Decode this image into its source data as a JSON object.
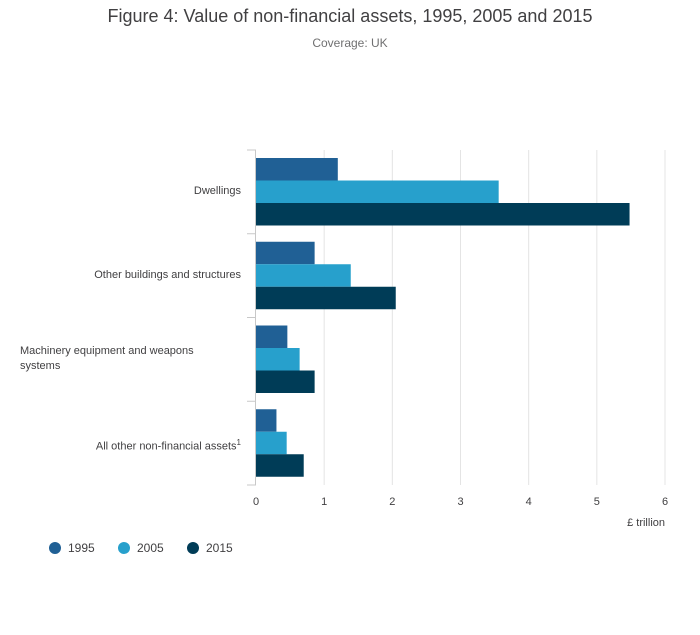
{
  "chart_data": {
    "type": "bar",
    "orientation": "horizontal",
    "title": "Figure 4: Value of non-financial assets, 1995, 2005 and 2015",
    "subtitle": "Coverage: UK",
    "xlabel": "£ trillion",
    "xlim": [
      0,
      6
    ],
    "xticks": [
      "0",
      "1",
      "2",
      "3",
      "4",
      "5",
      "6"
    ],
    "grid": true,
    "legend_position": "bottom-left",
    "categories": [
      {
        "label": "Dwellings",
        "sup": ""
      },
      {
        "label": "Other buildings and structures",
        "sup": ""
      },
      {
        "label": "Machinery equipment and weapons systems",
        "sup": ""
      },
      {
        "label": "All other non-financial assets",
        "sup": "1"
      }
    ],
    "series": [
      {
        "name": "1995",
        "color": "#206095",
        "values": [
          1.2,
          0.86,
          0.46,
          0.3
        ]
      },
      {
        "name": "2005",
        "color": "#27a0cc",
        "values": [
          3.56,
          1.39,
          0.64,
          0.45
        ]
      },
      {
        "name": "2015",
        "color": "#003c57",
        "values": [
          5.48,
          2.05,
          0.86,
          0.7
        ]
      }
    ]
  }
}
